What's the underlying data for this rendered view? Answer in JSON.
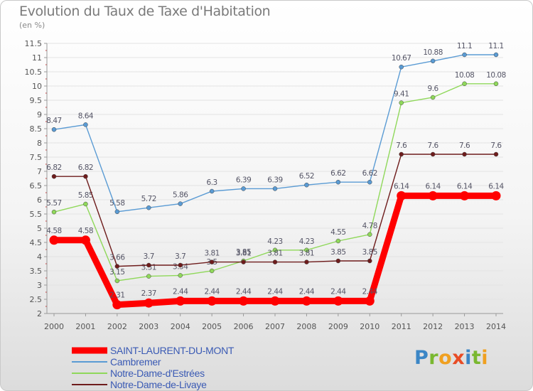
{
  "header": {
    "title": "Evolution du Taux de Taxe d'Habitation",
    "subtitle": "(en %)"
  },
  "colors": {
    "axis": "#999999",
    "grid": "#e3e3e3",
    "tick_text": "#555555",
    "label_text": "#555566",
    "legend_text": "#3a5ab4"
  },
  "logo": {
    "text": "Proxiti",
    "letters": [
      "P",
      "r",
      "o",
      "x",
      "i",
      "t",
      "i"
    ],
    "colors": [
      "#3b86c6",
      "#7ab830",
      "#f0a020",
      "#e84c25",
      "#3b86c6",
      "#7ab830",
      "#f0a020"
    ]
  },
  "chart_data": {
    "type": "line",
    "title": "Evolution du Taux de Taxe d'Habitation",
    "subtitle": "(en %)",
    "xlabel": "",
    "ylabel": "",
    "ylim": [
      2,
      11.5
    ],
    "yticks": [
      "2",
      "2.5",
      "3",
      "3.5",
      "4",
      "4.5",
      "5",
      "5.5",
      "6",
      "6.5",
      "7",
      "7.5",
      "8",
      "8.5",
      "9",
      "9.5",
      "10",
      "10.5",
      "11",
      "11.5"
    ],
    "grid": true,
    "legend_position": "bottom-left",
    "x": [
      "2000",
      "2001",
      "2002",
      "2003",
      "2004",
      "2005",
      "2006",
      "2007",
      "2008",
      "2009",
      "2010",
      "2011",
      "2012",
      "2013",
      "2014"
    ],
    "series": [
      {
        "name": "SAINT-LAURENT-DU-MONT",
        "color": "#ff0000",
        "values": [
          4.58,
          4.58,
          2.31,
          2.37,
          2.44,
          2.44,
          2.44,
          2.44,
          2.44,
          2.44,
          2.44,
          6.14,
          6.14,
          6.14,
          6.14
        ],
        "labels": [
          "4.58",
          "4.58",
          "2.31",
          "2.37",
          "2.44",
          "2.44",
          "2.44",
          "2.44",
          "2.44",
          "2.44",
          "2.44",
          "6.14",
          "6.14",
          "6.14",
          "6.14"
        ]
      },
      {
        "name": "Cambremer",
        "color": "#5a9bd4",
        "values": [
          8.47,
          8.64,
          5.58,
          5.72,
          5.86,
          6.3,
          6.39,
          6.39,
          6.52,
          6.62,
          6.62,
          10.67,
          10.88,
          11.1,
          11.1
        ],
        "labels": [
          "8.47",
          "8.64",
          "5.58",
          "5.72",
          "5.86",
          "6.3",
          "6.39",
          "6.39",
          "6.52",
          "6.62",
          "6.62",
          "10.67",
          "10.88",
          "11.1",
          "11.1"
        ]
      },
      {
        "name": "Notre-Dame-d'Estrées",
        "color": "#8fd85a",
        "values": [
          5.57,
          5.85,
          3.15,
          3.31,
          3.34,
          3.5,
          3.85,
          4.23,
          4.23,
          4.55,
          4.78,
          9.41,
          9.6,
          10.08,
          10.08
        ],
        "labels": [
          "5.57",
          "5.85",
          "3.15",
          "3.31",
          "3.34",
          "3.5",
          "3.85",
          "4.23",
          "4.23",
          "4.55",
          "4.78",
          "9.41",
          "9.6",
          "10.08",
          "10.08"
        ]
      },
      {
        "name": "Notre-Dame-de-Livaye",
        "color": "#6e1c1c",
        "values": [
          6.82,
          6.82,
          3.66,
          3.7,
          3.7,
          3.81,
          3.81,
          3.81,
          3.81,
          3.85,
          3.85,
          7.6,
          7.6,
          7.6,
          7.6
        ],
        "labels": [
          "6.82",
          "6.82",
          "3.66",
          "3.7",
          "3.7",
          "3.81",
          "3.81",
          "3.81",
          "3.81",
          "3.85",
          "3.85",
          "7.6",
          "7.6",
          "7.6",
          "7.6"
        ]
      }
    ]
  }
}
